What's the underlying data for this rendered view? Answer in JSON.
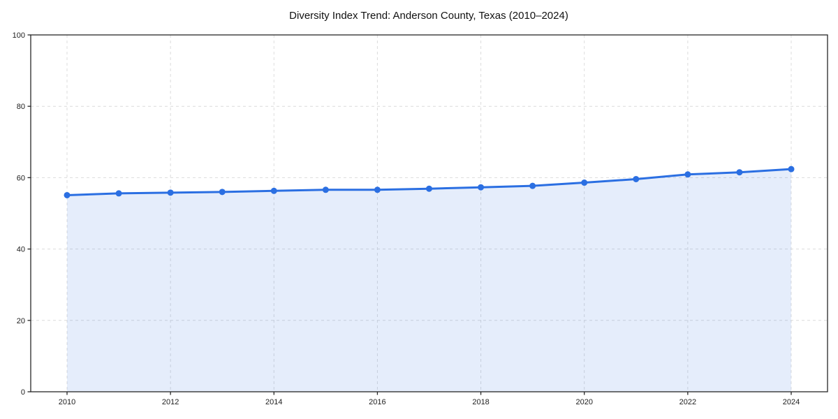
{
  "figure": {
    "title": "Diversity Index Trend: Anderson County, Texas (2010–2024)"
  },
  "chart_data": {
    "type": "area",
    "title": "Diversity Index Trend: Anderson County, Texas (2010–2024)",
    "xlabel": "",
    "ylabel": "",
    "x": [
      2010,
      2011,
      2012,
      2013,
      2014,
      2015,
      2016,
      2017,
      2018,
      2019,
      2020,
      2021,
      2022,
      2023,
      2024
    ],
    "series": [
      {
        "name": "Diversity Index",
        "values": [
          55.1,
          55.6,
          55.8,
          56.0,
          56.3,
          56.6,
          56.6,
          56.9,
          57.3,
          57.7,
          58.6,
          59.6,
          60.9,
          61.5,
          62.4
        ]
      }
    ],
    "xticks": [
      2010,
      2012,
      2014,
      2016,
      2018,
      2020,
      2022,
      2024
    ],
    "yticks": [
      0,
      20,
      40,
      60,
      80,
      100
    ],
    "ylim": [
      0,
      100
    ],
    "grid": true,
    "grid_style": "dashed",
    "legend": "none",
    "marker": "circle",
    "colors": {
      "line": "#2b6fe2",
      "marker": "#2b6fe2",
      "fill": "rgba(43,111,226,0.12)",
      "grid": "#dcdcdc",
      "spine": "#262626",
      "tick": "#262626",
      "text": "#202020",
      "background": "#ffffff"
    }
  }
}
